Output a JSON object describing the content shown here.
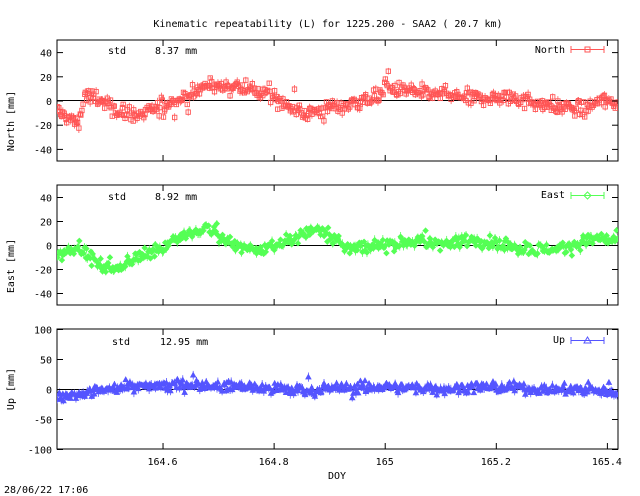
{
  "chart_data": {
    "type": "scatter",
    "title": "Kinematic repeatability (L) for 1225.200 - SAA2  ( 20.7 km)",
    "timestamp": "28/06/22 17:06",
    "xlabel": "DOY",
    "xlim": [
      164.41,
      165.42
    ],
    "xticks": [
      "164.6",
      "164.8",
      "165",
      "165.2",
      "165.4"
    ],
    "xtick_values": [
      164.6,
      164.8,
      165.0,
      165.2,
      165.4
    ],
    "grid": false,
    "panels": [
      {
        "series": "North",
        "ylabel": "North [mm]",
        "ylim": [
          -50,
          50
        ],
        "yticks": [
          "40",
          "20",
          "0",
          "-20",
          "-40"
        ],
        "ytick_values": [
          40,
          20,
          0,
          -20,
          -40
        ],
        "std_label": "std",
        "std_value": "8.37 mm",
        "color": "#ff5555",
        "marker": "square",
        "legend_position": "top-right",
        "trend": [
          [
            164.41,
            -8
          ],
          [
            164.43,
            -15
          ],
          [
            164.45,
            -18
          ],
          [
            164.46,
            5
          ],
          [
            164.48,
            2
          ],
          [
            164.5,
            -4
          ],
          [
            164.53,
            -10
          ],
          [
            164.56,
            -13
          ],
          [
            164.6,
            -5
          ],
          [
            164.64,
            2
          ],
          [
            164.68,
            12
          ],
          [
            164.72,
            13
          ],
          [
            164.76,
            11
          ],
          [
            164.79,
            4
          ],
          [
            164.81,
            0
          ],
          [
            164.84,
            -8
          ],
          [
            164.86,
            -12
          ],
          [
            164.9,
            -6
          ],
          [
            164.94,
            -3
          ],
          [
            164.98,
            2
          ],
          [
            165.0,
            11
          ],
          [
            165.03,
            8
          ],
          [
            165.07,
            6
          ],
          [
            165.12,
            4
          ],
          [
            165.16,
            2
          ],
          [
            165.2,
            3
          ],
          [
            165.24,
            2
          ],
          [
            165.28,
            -3
          ],
          [
            165.32,
            -5
          ],
          [
            165.36,
            -8
          ],
          [
            165.39,
            0
          ],
          [
            165.42,
            -2
          ]
        ],
        "noise": 8
      },
      {
        "series": "East",
        "ylabel": "East [mm]",
        "ylim": [
          -50,
          50
        ],
        "yticks": [
          "40",
          "20",
          "0",
          "-20",
          "-40"
        ],
        "ytick_values": [
          40,
          20,
          0,
          -20,
          -40
        ],
        "std_label": "std",
        "std_value": "8.92 mm",
        "color": "#55ff55",
        "marker": "diamond",
        "legend_position": "top-right",
        "trend": [
          [
            164.41,
            -10
          ],
          [
            164.43,
            -5
          ],
          [
            164.45,
            0
          ],
          [
            164.47,
            -12
          ],
          [
            164.5,
            -20
          ],
          [
            164.53,
            -18
          ],
          [
            164.56,
            -8
          ],
          [
            164.6,
            -2
          ],
          [
            164.63,
            6
          ],
          [
            164.66,
            12
          ],
          [
            164.68,
            15
          ],
          [
            164.7,
            8
          ],
          [
            164.72,
            0
          ],
          [
            164.75,
            -2
          ],
          [
            164.78,
            -4
          ],
          [
            164.82,
            2
          ],
          [
            164.86,
            10
          ],
          [
            164.88,
            15
          ],
          [
            164.9,
            8
          ],
          [
            164.93,
            -2
          ],
          [
            164.96,
            -3
          ],
          [
            165.0,
            0
          ],
          [
            165.04,
            4
          ],
          [
            165.08,
            1
          ],
          [
            165.12,
            2
          ],
          [
            165.16,
            4
          ],
          [
            165.2,
            2
          ],
          [
            165.24,
            -2
          ],
          [
            165.28,
            -4
          ],
          [
            165.32,
            -3
          ],
          [
            165.35,
            2
          ],
          [
            165.38,
            5
          ],
          [
            165.42,
            4
          ]
        ],
        "noise": 7
      },
      {
        "series": "Up",
        "ylabel": "Up [mm]",
        "ylim": [
          -100,
          100
        ],
        "yticks": [
          "100",
          "50",
          "0",
          "-50",
          "-100"
        ],
        "ytick_values": [
          100,
          50,
          0,
          -50,
          -100
        ],
        "std_label": "std",
        "std_value": "12.95 mm",
        "color": "#5555ff",
        "marker": "triangle",
        "legend_position": "top-right",
        "trend": [
          [
            164.41,
            -15
          ],
          [
            164.45,
            -10
          ],
          [
            164.5,
            0
          ],
          [
            164.53,
            5
          ],
          [
            164.56,
            3
          ],
          [
            164.6,
            6
          ],
          [
            164.66,
            8
          ],
          [
            164.7,
            5
          ],
          [
            164.76,
            2
          ],
          [
            164.8,
            0
          ],
          [
            164.86,
            -2
          ],
          [
            164.9,
            0
          ],
          [
            164.96,
            2
          ],
          [
            165.0,
            4
          ],
          [
            165.06,
            2
          ],
          [
            165.12,
            0
          ],
          [
            165.18,
            3
          ],
          [
            165.24,
            2
          ],
          [
            165.3,
            -2
          ],
          [
            165.36,
            0
          ],
          [
            165.42,
            -6
          ]
        ],
        "noise": 11
      }
    ]
  }
}
